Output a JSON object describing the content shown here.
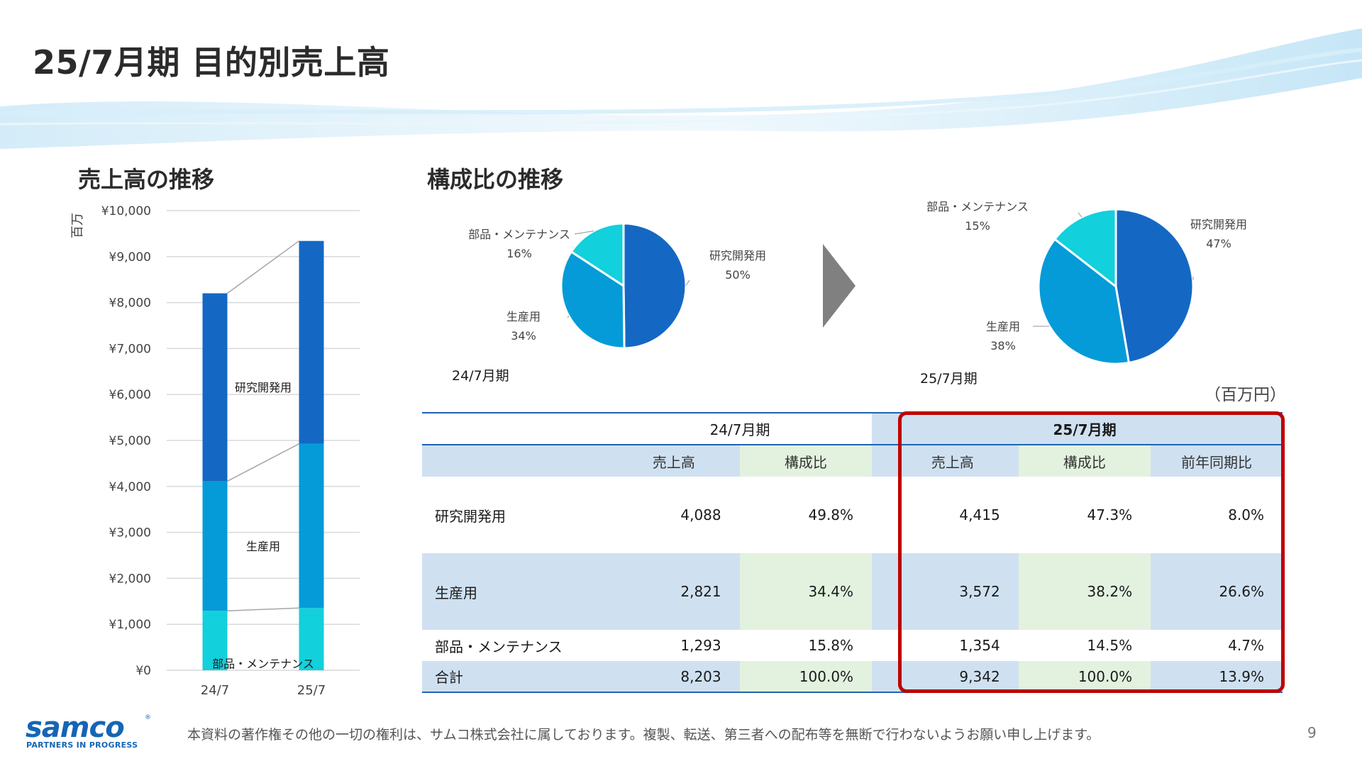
{
  "page_title": "25/7月期 目的別売上高",
  "left_section_title": "売上高の推移",
  "right_section_title": "構成比の推移",
  "colors": {
    "research": "#1468c4",
    "production": "#049bd8",
    "parts": "#12d0dc",
    "green_cell": "#e2f2df",
    "blue_cell": "#cfe1f1",
    "highlight_border": "#c00000",
    "arrow": "#808080"
  },
  "chart_data": [
    {
      "type": "bar",
      "stacked": true,
      "categories": [
        "24/7",
        "25/7"
      ],
      "series": [
        {
          "name": "部品・メンテナンス",
          "values": [
            1293,
            1354
          ],
          "color": "#12d0dc"
        },
        {
          "name": "生産用",
          "values": [
            2821,
            3572
          ],
          "color": "#049bd8"
        },
        {
          "name": "研究開発用",
          "values": [
            4088,
            4415
          ],
          "color": "#1468c4"
        }
      ],
      "ylabel": "百万",
      "ylim": [
        0,
        10000
      ],
      "yticks": [
        "¥0",
        "¥1,000",
        "¥2,000",
        "¥3,000",
        "¥4,000",
        "¥5,000",
        "¥6,000",
        "¥7,000",
        "¥8,000",
        "¥9,000",
        "¥10,000"
      ],
      "grid": true,
      "series_connectors": true
    },
    {
      "type": "pie",
      "period_label": "24/7月期",
      "slices": [
        {
          "name": "研究開発用",
          "pct_label": "50%",
          "value": 49.8,
          "color": "#1468c4"
        },
        {
          "name": "生産用",
          "pct_label": "34%",
          "value": 34.4,
          "color": "#049bd8"
        },
        {
          "name": "部品・メンテナンス",
          "pct_label": "16%",
          "value": 15.8,
          "color": "#12d0dc"
        }
      ]
    },
    {
      "type": "pie",
      "period_label": "25/7月期",
      "slices": [
        {
          "name": "研究開発用",
          "pct_label": "47%",
          "value": 47.3,
          "color": "#1468c4"
        },
        {
          "name": "生産用",
          "pct_label": "38%",
          "value": 38.2,
          "color": "#049bd8"
        },
        {
          "name": "部品・メンテナンス",
          "pct_label": "15%",
          "value": 14.5,
          "color": "#12d0dc"
        }
      ]
    }
  ],
  "table": {
    "unit_note": "（百万円）",
    "group_headers": [
      "24/7月期",
      "25/7月期"
    ],
    "sub_headers": [
      "売上高",
      "構成比",
      "売上高",
      "構成比",
      "前年同期比"
    ],
    "rows": [
      {
        "label": "研究開発用",
        "cells": [
          "4,088",
          "49.8%",
          "4,415",
          "47.3%",
          "8.0%"
        ]
      },
      {
        "label": "生産用",
        "cells": [
          "2,821",
          "34.4%",
          "3,572",
          "38.2%",
          "26.6%"
        ]
      },
      {
        "label": "部品・メンテナンス",
        "cells": [
          "1,293",
          "15.8%",
          "1,354",
          "14.5%",
          "4.7%"
        ]
      },
      {
        "label": "合計",
        "cells": [
          "8,203",
          "100.0%",
          "9,342",
          "100.0%",
          "13.9%"
        ]
      }
    ]
  },
  "footer": {
    "copyright": "本資料の著作権その他の一切の権利は、サムコ株式会社に属しております。複製、転送、第三者への配布等を無断で行わないようお願い申し上げます。",
    "page_number": "9",
    "logo_text": "samco",
    "logo_tagline": "PARTNERS IN PROGRESS",
    "logo_mark": "®"
  }
}
